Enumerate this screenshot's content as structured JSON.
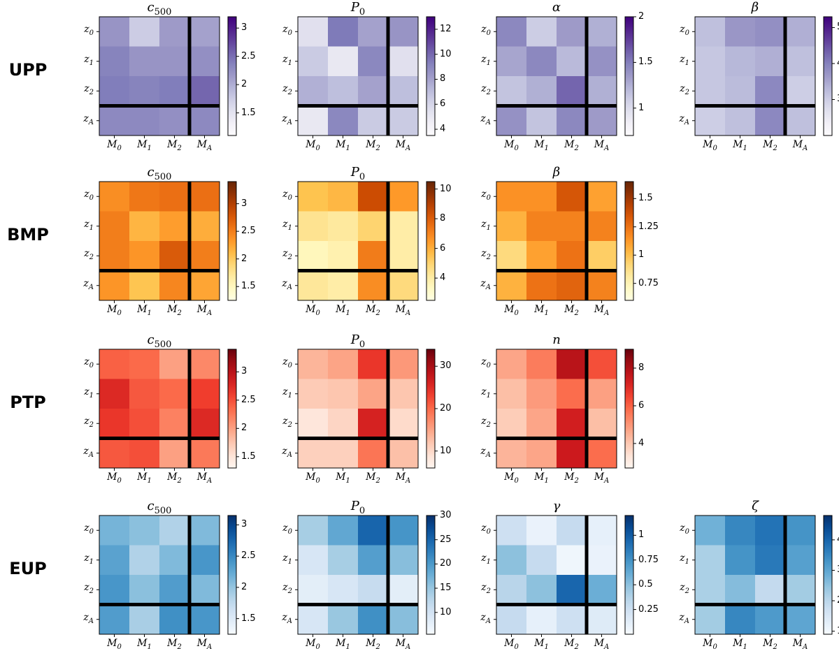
{
  "chart_data": [
    {
      "type": "heatmap",
      "row": "UPP",
      "title": "c500",
      "colormap": "purples",
      "rows": [
        "z0",
        "z1",
        "z2",
        "zA"
      ],
      "cols": [
        "M0",
        "M1",
        "M2",
        "MA"
      ],
      "values": [
        [
          2.2,
          1.75,
          2.15,
          2.1
        ],
        [
          2.35,
          2.2,
          2.2,
          2.25
        ],
        [
          2.4,
          2.35,
          2.4,
          2.55
        ],
        [
          2.3,
          2.3,
          2.25,
          2.3
        ]
      ],
      "vmin": 1.1,
      "vmax": 3.2,
      "cbar_ticks": [
        1.5,
        2.0,
        2.5,
        3.0
      ]
    },
    {
      "type": "heatmap",
      "row": "UPP",
      "title": "P0",
      "colormap": "purples",
      "rows": [
        "z0",
        "z1",
        "z2",
        "zA"
      ],
      "cols": [
        "M0",
        "M1",
        "M2",
        "MA"
      ],
      "values": [
        [
          5.5,
          9.5,
          8.0,
          8.5
        ],
        [
          6.5,
          5.0,
          9.0,
          5.5
        ],
        [
          7.5,
          7.0,
          8.0,
          7.0
        ],
        [
          5.0,
          9.0,
          6.5,
          6.5
        ]
      ],
      "vmin": 3.5,
      "vmax": 13,
      "cbar_ticks": [
        4,
        6,
        8,
        10,
        12
      ]
    },
    {
      "type": "heatmap",
      "row": "UPP",
      "title": "α",
      "colormap": "purples",
      "rows": [
        "z0",
        "z1",
        "z2",
        "zA"
      ],
      "cols": [
        "M0",
        "M1",
        "M2",
        "MA"
      ],
      "values": [
        [
          1.45,
          1.1,
          1.35,
          1.25
        ],
        [
          1.3,
          1.45,
          1.2,
          1.4
        ],
        [
          1.15,
          1.25,
          1.6,
          1.25
        ],
        [
          1.4,
          1.15,
          1.45,
          1.35
        ]
      ],
      "vmin": 0.7,
      "vmax": 2.0,
      "cbar_ticks": [
        1.0,
        1.5,
        2.0
      ]
    },
    {
      "type": "heatmap",
      "row": "UPP",
      "title": "β",
      "colormap": "purples",
      "rows": [
        "z0",
        "z1",
        "z2",
        "zA"
      ],
      "cols": [
        "M0",
        "M1",
        "M2",
        "MA"
      ],
      "values": [
        [
          3.2,
          3.7,
          3.8,
          3.4
        ],
        [
          3.1,
          3.3,
          3.4,
          3.2
        ],
        [
          3.1,
          3.25,
          3.9,
          3.0
        ],
        [
          3.0,
          3.2,
          3.9,
          3.2
        ]
      ],
      "vmin": 2.0,
      "vmax": 5.3,
      "cbar_ticks": [
        3,
        4,
        5
      ]
    },
    {
      "type": "heatmap",
      "row": "BMP",
      "title": "c500",
      "colormap": "oranges",
      "rows": [
        "z0",
        "z1",
        "z2",
        "zA"
      ],
      "cols": [
        "M0",
        "M1",
        "M2",
        "MA"
      ],
      "values": [
        [
          2.4,
          2.55,
          2.6,
          2.6
        ],
        [
          2.5,
          2.15,
          2.3,
          2.2
        ],
        [
          2.5,
          2.35,
          2.75,
          2.5
        ],
        [
          2.35,
          2.05,
          2.45,
          2.25
        ]
      ],
      "vmin": 1.25,
      "vmax": 3.4,
      "cbar_ticks": [
        1.5,
        2.0,
        2.5,
        3.0
      ]
    },
    {
      "type": "heatmap",
      "row": "BMP",
      "title": "P0",
      "colormap": "oranges",
      "rows": [
        "z0",
        "z1",
        "z2",
        "zA"
      ],
      "cols": [
        "M0",
        "M1",
        "M2",
        "MA"
      ],
      "values": [
        [
          5.5,
          5.8,
          8.5,
          6.5
        ],
        [
          4.5,
          4.2,
          5.0,
          4.0
        ],
        [
          3.5,
          3.8,
          7.2,
          4.0
        ],
        [
          4.3,
          4.0,
          6.8,
          4.8
        ]
      ],
      "vmin": 2.5,
      "vmax": 10.5,
      "cbar_ticks": [
        4,
        6,
        8,
        10
      ]
    },
    {
      "type": "heatmap",
      "row": "BMP",
      "title": "β",
      "colormap": "oranges",
      "rows": [
        "z0",
        "z1",
        "z2",
        "zA"
      ],
      "cols": [
        "M0",
        "M1",
        "M2",
        "MA"
      ],
      "values": [
        [
          1.15,
          1.15,
          1.35,
          1.1
        ],
        [
          1.05,
          1.2,
          1.2,
          1.2
        ],
        [
          0.9,
          1.1,
          1.25,
          0.95
        ],
        [
          1.05,
          1.25,
          1.3,
          1.2
        ]
      ],
      "vmin": 0.6,
      "vmax": 1.65,
      "cbar_ticks": [
        0.75,
        1.0,
        1.25,
        1.5
      ]
    },
    {
      "type": "heatmap",
      "row": "PTP",
      "title": "c500",
      "colormap": "reds",
      "rows": [
        "z0",
        "z1",
        "z2",
        "zA"
      ],
      "cols": [
        "M0",
        "M1",
        "M2",
        "MA"
      ],
      "values": [
        [
          2.4,
          2.35,
          2.0,
          2.15
        ],
        [
          2.75,
          2.45,
          2.35,
          2.6
        ],
        [
          2.65,
          2.5,
          2.2,
          2.75
        ],
        [
          2.45,
          2.5,
          2.0,
          2.25
        ]
      ],
      "vmin": 1.3,
      "vmax": 3.4,
      "cbar_ticks": [
        1.5,
        2.0,
        2.5,
        3.0
      ]
    },
    {
      "type": "heatmap",
      "row": "PTP",
      "title": "P0",
      "colormap": "reds",
      "rows": [
        "z0",
        "z1",
        "z2",
        "zA"
      ],
      "cols": [
        "M0",
        "M1",
        "M2",
        "MA"
      ],
      "values": [
        [
          13.5,
          15.0,
          24.0,
          16.0
        ],
        [
          11.5,
          12.0,
          15.0,
          12.0
        ],
        [
          8.5,
          10.5,
          26.0,
          10.0
        ],
        [
          11.0,
          11.0,
          19.0,
          12.5
        ]
      ],
      "vmin": 6,
      "vmax": 34,
      "cbar_ticks": [
        10,
        20,
        30
      ]
    },
    {
      "type": "heatmap",
      "row": "PTP",
      "title": "n",
      "colormap": "reds",
      "rows": [
        "z0",
        "z1",
        "z2",
        "zA"
      ],
      "cols": [
        "M0",
        "M1",
        "M2",
        "MA"
      ],
      "values": [
        [
          4.7,
          5.5,
          7.8,
          6.3
        ],
        [
          4.2,
          4.9,
          5.8,
          4.8
        ],
        [
          3.9,
          4.7,
          7.3,
          4.2
        ],
        [
          4.4,
          4.7,
          7.4,
          5.8
        ]
      ],
      "vmin": 2.7,
      "vmax": 9.0,
      "cbar_ticks": [
        4,
        6,
        8
      ]
    },
    {
      "type": "heatmap",
      "row": "EUP",
      "title": "c500",
      "colormap": "blues",
      "rows": [
        "z0",
        "z1",
        "z2",
        "zA"
      ],
      "cols": [
        "M0",
        "M1",
        "M2",
        "MA"
      ],
      "values": [
        [
          2.15,
          2.05,
          1.85,
          2.1
        ],
        [
          2.3,
          1.85,
          2.1,
          2.4
        ],
        [
          2.4,
          2.05,
          2.35,
          2.1
        ],
        [
          2.35,
          1.9,
          2.45,
          2.4
        ]
      ],
      "vmin": 1.25,
      "vmax": 3.15,
      "cbar_ticks": [
        1.5,
        2.0,
        2.5,
        3.0
      ]
    },
    {
      "type": "heatmap",
      "row": "EUP",
      "title": "P0",
      "colormap": "blues",
      "rows": [
        "z0",
        "z1",
        "z2",
        "zA"
      ],
      "cols": [
        "M0",
        "M1",
        "M2",
        "MA"
      ],
      "values": [
        [
          14.0,
          18.5,
          25.0,
          20.5
        ],
        [
          9.5,
          14.0,
          19.5,
          16.0
        ],
        [
          8.0,
          9.5,
          11.5,
          8.0
        ],
        [
          9.5,
          15.0,
          21.0,
          16.0
        ]
      ],
      "vmin": 5.5,
      "vmax": 30,
      "cbar_ticks": [
        10,
        15,
        20,
        25,
        30
      ]
    },
    {
      "type": "heatmap",
      "row": "EUP",
      "title": "γ",
      "colormap": "blues",
      "rows": [
        "z0",
        "z1",
        "z2",
        "zA"
      ],
      "cols": [
        "M0",
        "M1",
        "M2",
        "MA"
      ],
      "values": [
        [
          0.25,
          0.08,
          0.3,
          0.1
        ],
        [
          0.5,
          0.3,
          0.05,
          0.08
        ],
        [
          0.35,
          0.5,
          0.95,
          0.6
        ],
        [
          0.3,
          0.1,
          0.25,
          0.15
        ]
      ],
      "vmin": 0.0,
      "vmax": 1.2,
      "cbar_ticks": [
        0.25,
        0.5,
        0.75,
        1.0
      ]
    },
    {
      "type": "heatmap",
      "row": "EUP",
      "title": "ζ",
      "colormap": "blues",
      "rows": [
        "z0",
        "z1",
        "z2",
        "zA"
      ],
      "cols": [
        "M0",
        "M1",
        "M2",
        "MA"
      ],
      "values": [
        [
          2.8,
          3.5,
          3.8,
          3.3
        ],
        [
          2.2,
          3.3,
          3.7,
          3.1
        ],
        [
          2.2,
          2.6,
          1.9,
          2.3
        ],
        [
          2.3,
          3.5,
          3.2,
          3.0
        ]
      ],
      "vmin": 0.9,
      "vmax": 4.8,
      "cbar_ticks": [
        1,
        2,
        3,
        4
      ]
    }
  ],
  "row_labels": [
    "UPP",
    "BMP",
    "PTP",
    "EUP"
  ]
}
